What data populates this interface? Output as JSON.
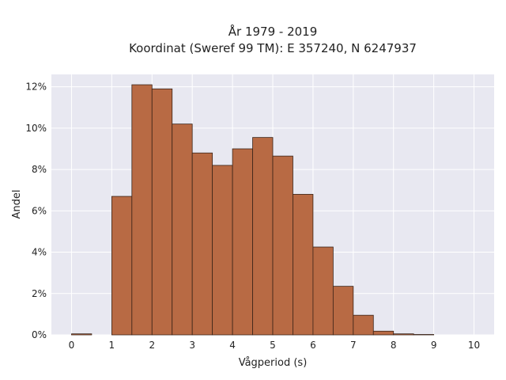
{
  "chart_data": {
    "type": "bar",
    "title_lines": [
      "År 1979 - 2019",
      "Koordinat (Sweref 99 TM): E 357240, N 6247937"
    ],
    "xlabel": "Vågperiod (s)",
    "ylabel": "Andel",
    "xlim": [
      -0.5,
      10.5
    ],
    "ylim": [
      0,
      12.6
    ],
    "x_ticks": [
      0,
      1,
      2,
      3,
      4,
      5,
      6,
      7,
      8,
      9,
      10
    ],
    "y_ticks": [
      0,
      2,
      4,
      6,
      8,
      10,
      12
    ],
    "y_tick_labels": [
      "0%",
      "2%",
      "4%",
      "6%",
      "8%",
      "10%",
      "12%"
    ],
    "bin_width": 0.5,
    "bins": [
      {
        "x0": 0.0,
        "value": 0.05
      },
      {
        "x0": 0.5,
        "value": 0.0
      },
      {
        "x0": 1.0,
        "value": 6.7
      },
      {
        "x0": 1.5,
        "value": 12.1
      },
      {
        "x0": 2.0,
        "value": 11.9
      },
      {
        "x0": 2.5,
        "value": 10.2
      },
      {
        "x0": 3.0,
        "value": 8.8
      },
      {
        "x0": 3.5,
        "value": 8.2
      },
      {
        "x0": 4.0,
        "value": 9.0
      },
      {
        "x0": 4.5,
        "value": 9.55
      },
      {
        "x0": 5.0,
        "value": 8.65
      },
      {
        "x0": 5.5,
        "value": 6.8
      },
      {
        "x0": 6.0,
        "value": 4.25
      },
      {
        "x0": 6.5,
        "value": 2.35
      },
      {
        "x0": 7.0,
        "value": 0.95
      },
      {
        "x0": 7.5,
        "value": 0.18
      },
      {
        "x0": 8.0,
        "value": 0.05
      },
      {
        "x0": 8.5,
        "value": 0.02
      }
    ],
    "grid": true,
    "colors": {
      "bar_fill": "#b86a44",
      "bar_stroke": "#3a2418",
      "plot_background": "#e8e8f1",
      "grid": "#ffffff"
    }
  }
}
